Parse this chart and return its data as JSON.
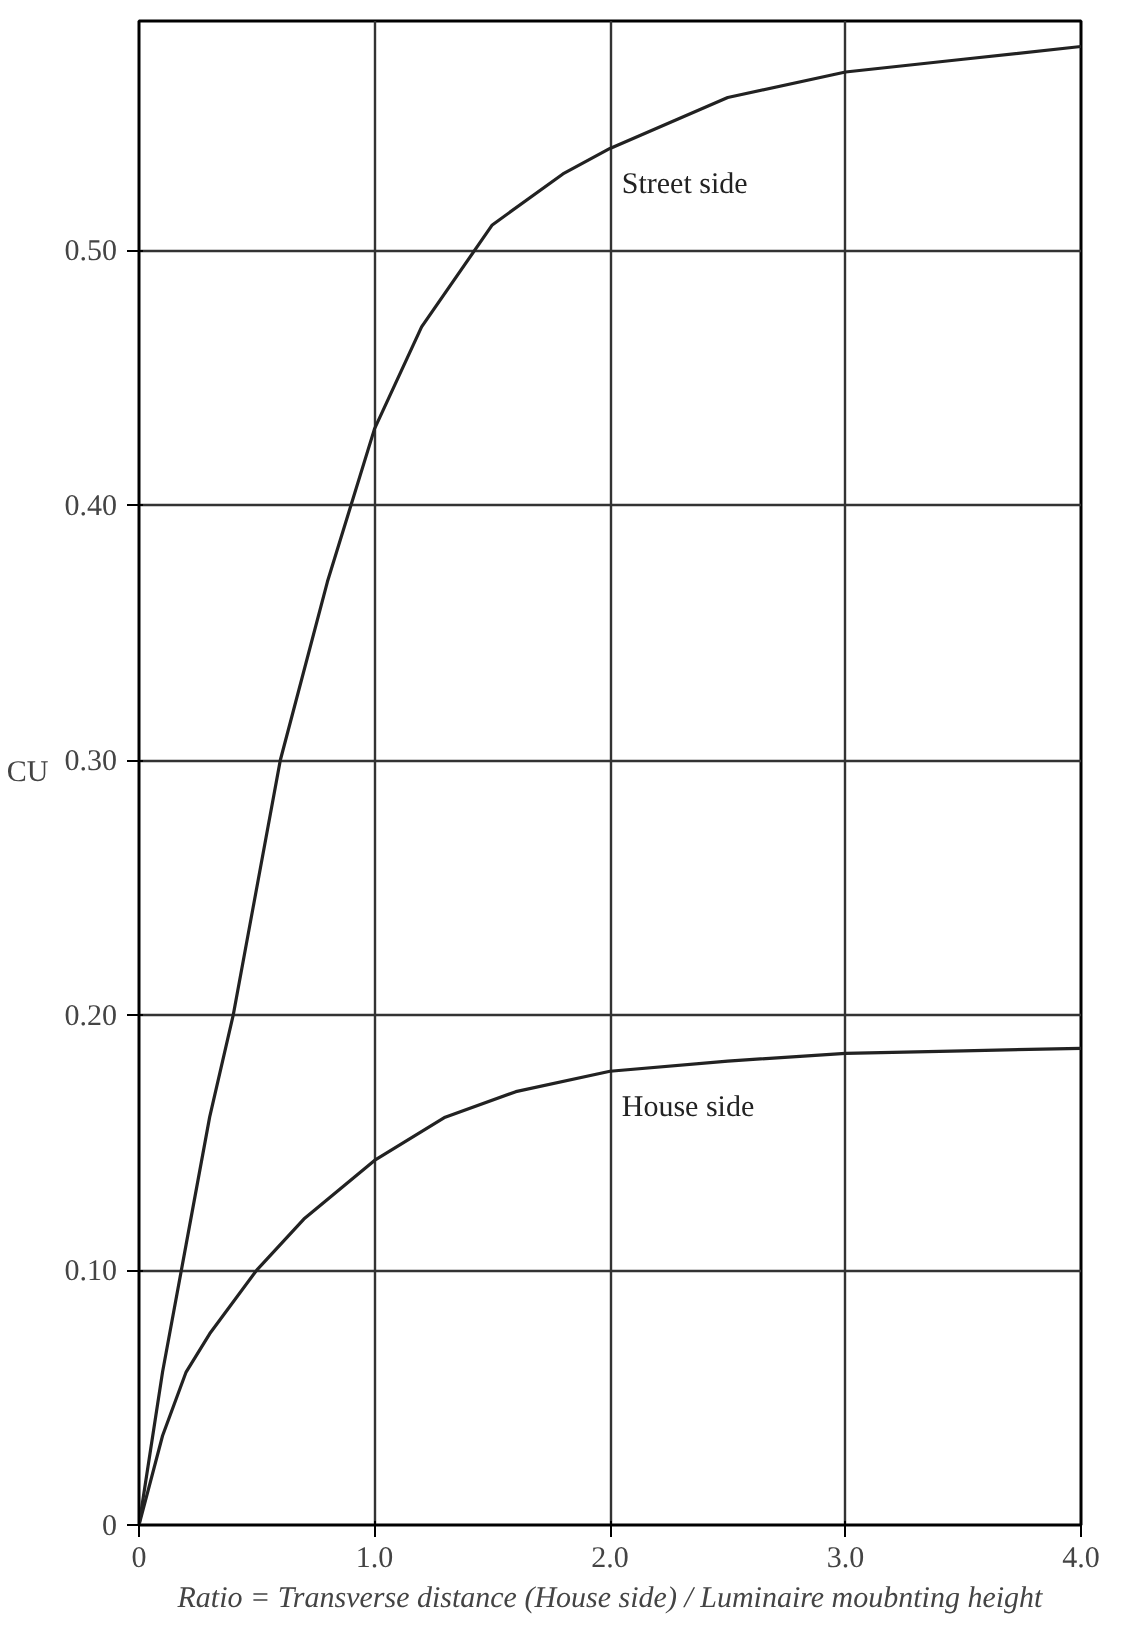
{
  "chart_data": {
    "type": "line",
    "xlabel": "Ratio = Transverse distance (House side) / Luminaire moubnting height",
    "ylabel": "CU",
    "xlim": [
      0,
      4.0
    ],
    "ylim": [
      0,
      0.59
    ],
    "xticks": [
      0,
      {
        "value": 1,
        "label": "1.0"
      },
      {
        "value": 2,
        "label": "2.0"
      },
      {
        "value": 3,
        "label": "3.0"
      },
      {
        "value": 4,
        "label": "4.0"
      }
    ],
    "yticks": [
      0,
      {
        "value": 0.1,
        "label": "0.10"
      },
      {
        "value": 0.2,
        "label": "0.20"
      },
      {
        "value": 0.3,
        "label": "0.30"
      },
      {
        "value": 0.4,
        "label": "0.40"
      },
      {
        "value": 0.5,
        "label": "0.50"
      }
    ],
    "grid": true,
    "legend": false,
    "marker": "none",
    "line_style": "solid",
    "series": [
      {
        "name": "Street side",
        "color": "#222222",
        "x": [
          0,
          0.1,
          0.2,
          0.3,
          0.4,
          0.5,
          0.6,
          0.8,
          1.0,
          1.2,
          1.5,
          1.8,
          2.0,
          2.5,
          3.0,
          3.5,
          4.0
        ],
        "values": [
          0,
          0.06,
          0.11,
          0.16,
          0.2,
          0.25,
          0.3,
          0.37,
          0.43,
          0.47,
          0.51,
          0.53,
          0.54,
          0.56,
          0.57,
          0.575,
          0.58
        ]
      },
      {
        "name": "House side",
        "color": "#222222",
        "x": [
          0,
          0.1,
          0.2,
          0.3,
          0.5,
          0.7,
          1.0,
          1.3,
          1.6,
          2.0,
          2.5,
          3.0,
          3.5,
          4.0
        ],
        "values": [
          0,
          0.035,
          0.06,
          0.075,
          0.1,
          0.12,
          0.143,
          0.16,
          0.17,
          0.178,
          0.182,
          0.185,
          0.186,
          0.187
        ]
      }
    ]
  }
}
